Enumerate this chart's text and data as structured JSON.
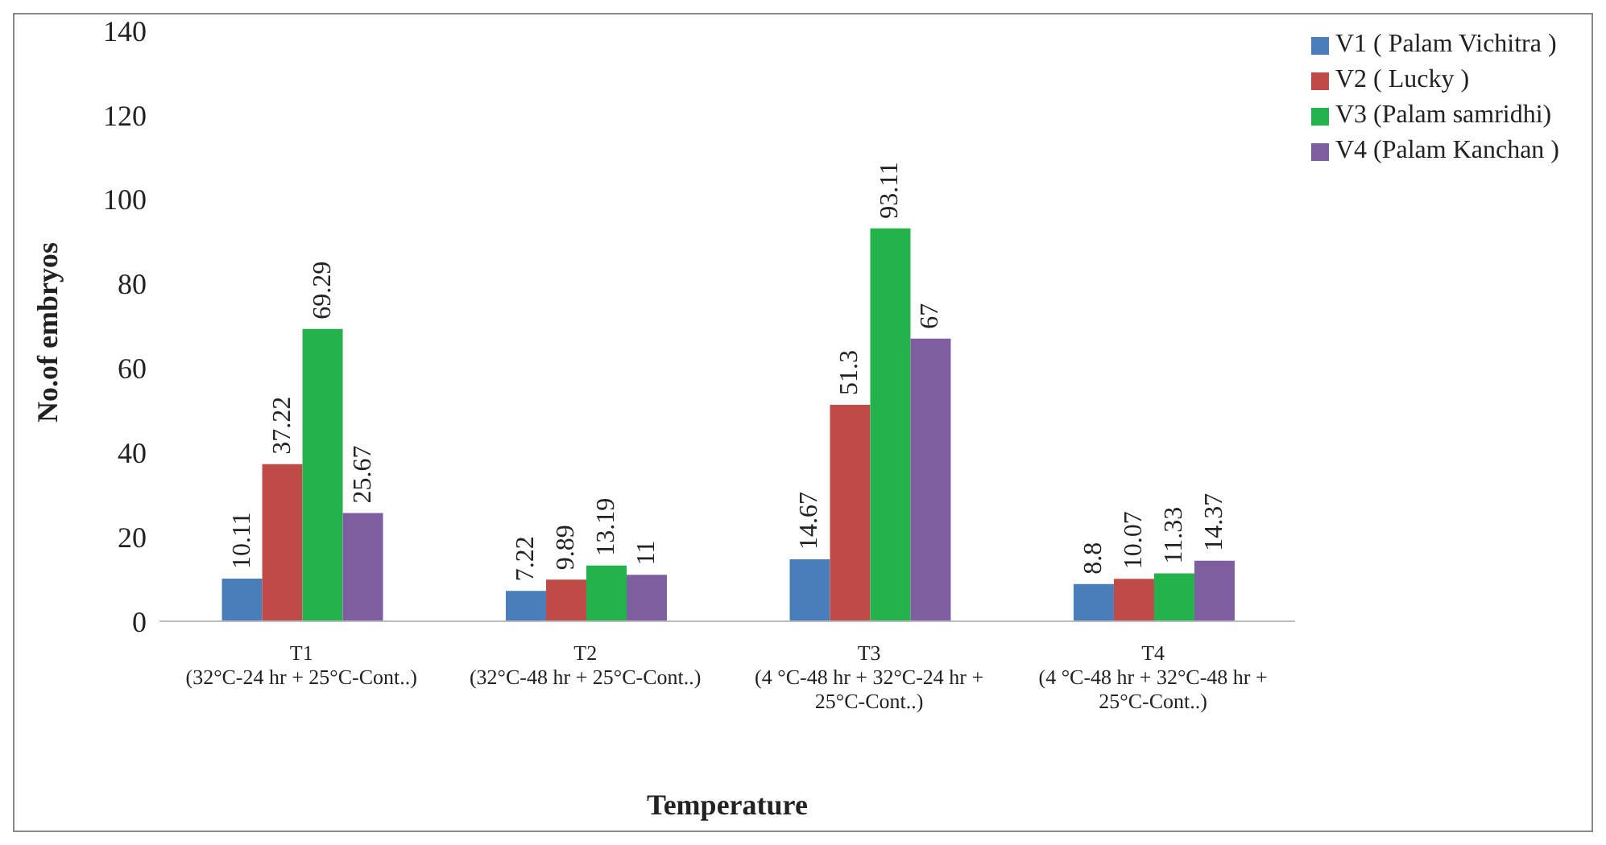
{
  "chart_data": {
    "type": "bar",
    "xlabel": "Temperature",
    "ylabel": "No.of embryos",
    "categories": [
      "T1\n(32°C-24 hr + 25°C-Cont..)",
      "T2\n(32°C-48 hr + 25°C-Cont..)",
      "T3\n(4 °C-48 hr + 32°C-24 hr +\n25°C-Cont..)",
      "T4\n(4 °C-48 hr + 32°C-48 hr +\n25°C-Cont..)"
    ],
    "series": [
      {
        "name": "V1 ( Palam Vichitra )",
        "color": "#4a7ebb",
        "values": [
          10.11,
          7.22,
          14.67,
          8.8
        ]
      },
      {
        "name": "V2 ( Lucky )",
        "color": "#be4b48",
        "values": [
          37.22,
          9.89,
          51.3,
          10.07
        ]
      },
      {
        "name": "V3 (Palam samridhi)",
        "color": "#23b24b",
        "values": [
          69.29,
          13.19,
          93.11,
          11.33
        ]
      },
      {
        "name": "V4 (Palam Kanchan )",
        "color": "#7d5fa0",
        "values": [
          25.67,
          11,
          67,
          14.37
        ]
      }
    ],
    "ylim": [
      0,
      140
    ],
    "yticks": [
      0,
      20,
      40,
      60,
      80,
      100,
      120,
      140
    ],
    "grid": false,
    "legend": "top right",
    "data_labels": true
  }
}
